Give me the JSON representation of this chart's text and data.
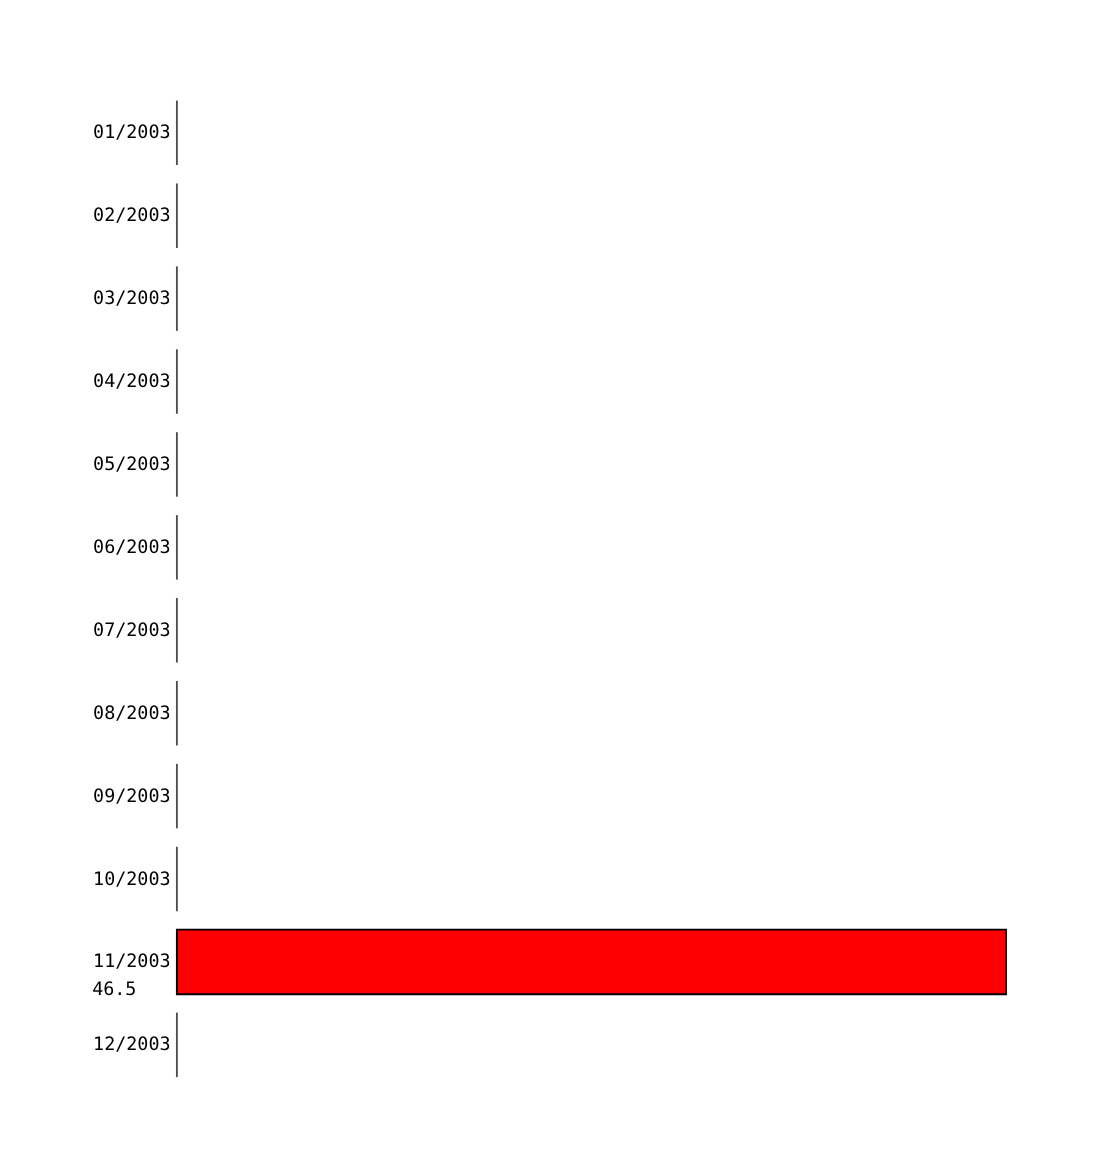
{
  "chart_data": {
    "type": "bar",
    "orientation": "horizontal",
    "categories": [
      "01/2003",
      "02/2003",
      "03/2003",
      "04/2003",
      "05/2003",
      "06/2003",
      "07/2003",
      "08/2003",
      "09/2003",
      "10/2003",
      "11/2003",
      "12/2003"
    ],
    "values": [
      null,
      null,
      null,
      null,
      null,
      null,
      null,
      null,
      null,
      null,
      46.5,
      null
    ],
    "data_labels": true,
    "color": "#ff0000",
    "grid": false
  }
}
